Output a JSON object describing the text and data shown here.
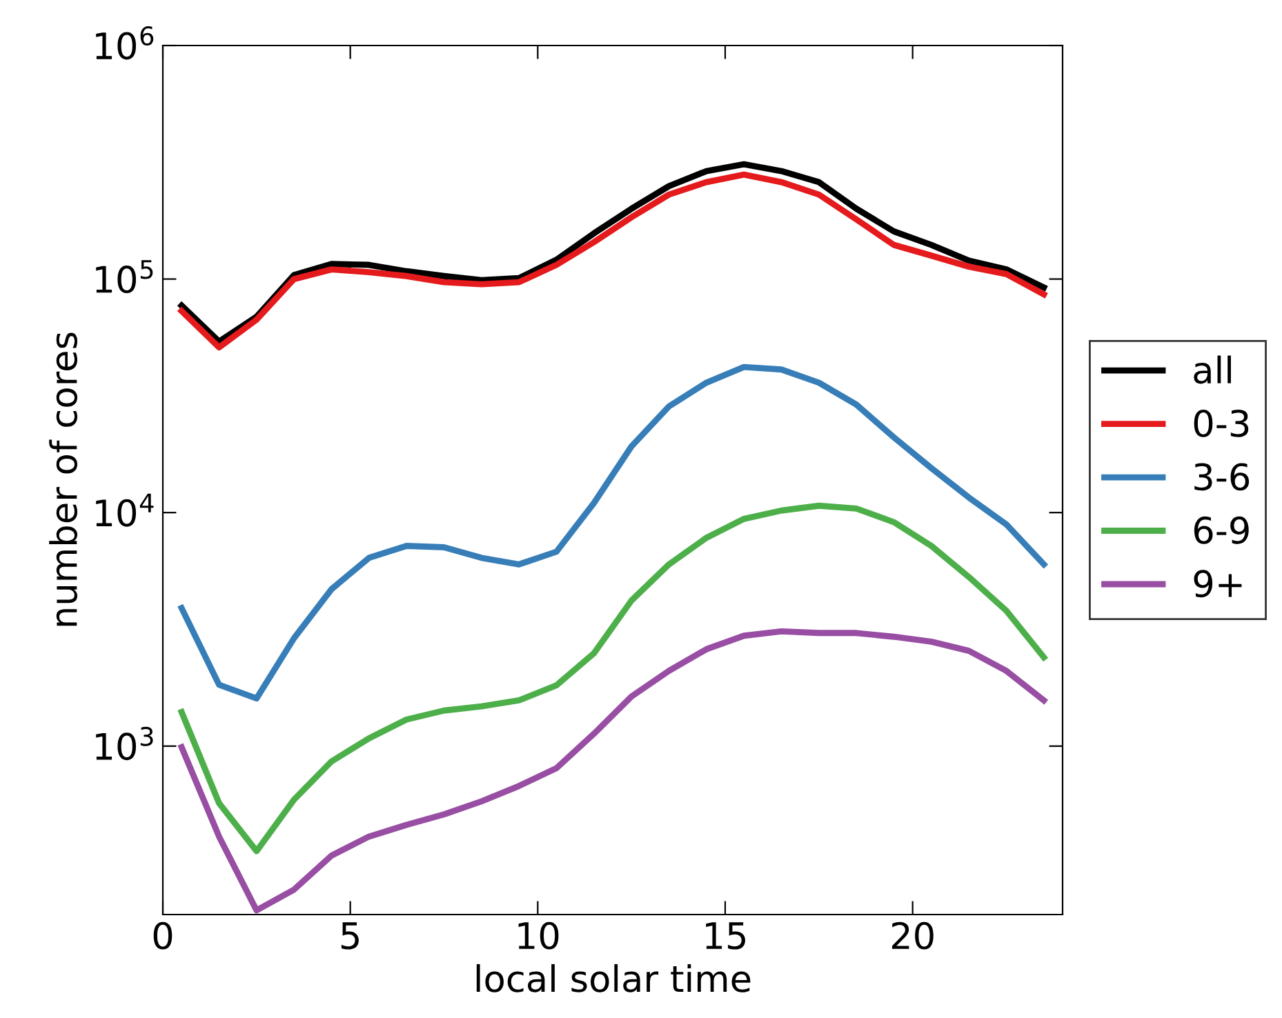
{
  "chart_data": {
    "type": "line",
    "xlabel": "local solar time",
    "ylabel": "number of cores",
    "log": "y",
    "grid": false,
    "legend": "right",
    "marker": "none",
    "line_style": "solid",
    "x": [
      0.5,
      1.5,
      2.5,
      3.5,
      4.5,
      5.5,
      6.5,
      7.5,
      8.5,
      9.5,
      10.5,
      11.5,
      12.5,
      13.5,
      14.5,
      15.5,
      16.5,
      17.5,
      18.5,
      19.5,
      20.5,
      21.5,
      22.5,
      23.5
    ],
    "xlim": [
      0,
      24
    ],
    "xticks": [
      0,
      5,
      10,
      15,
      20
    ],
    "ylim": [
      190,
      1000000
    ],
    "yticks": [
      {
        "value": 1000,
        "label": "10$^{3}$"
      },
      {
        "value": 10000,
        "label": "10$^{4}$"
      },
      {
        "value": 100000,
        "label": "10$^{5}$"
      },
      {
        "value": 1000000,
        "label": "10$^{6}$"
      }
    ],
    "series": [
      {
        "name": "all",
        "color": "#000000",
        "values": [
          77000,
          54000,
          69000,
          104000,
          116000,
          115000,
          108000,
          103000,
          99000,
          101000,
          121000,
          157000,
          200000,
          250000,
          290000,
          310000,
          290000,
          260000,
          200000,
          160000,
          140000,
          120000,
          110000,
          92000
        ]
      },
      {
        "name": "0-3",
        "color": "#e41a1c",
        "values": [
          73000,
          51000,
          67000,
          100000,
          110000,
          107000,
          103000,
          97000,
          95000,
          97000,
          115000,
          144000,
          184000,
          230000,
          260000,
          280000,
          260000,
          230000,
          180000,
          140000,
          126000,
          113000,
          105000,
          86000
        ]
      },
      {
        "name": "3-6",
        "color": "#377eb8",
        "values": [
          3900,
          1830,
          1600,
          2900,
          4700,
          6400,
          7200,
          7100,
          6400,
          6000,
          6800,
          11000,
          19200,
          28500,
          36000,
          42000,
          41000,
          36000,
          29000,
          21000,
          15500,
          11600,
          8900,
          6000
        ]
      },
      {
        "name": "6-9",
        "color": "#4daf4a",
        "values": [
          1400,
          570,
          355,
          590,
          860,
          1080,
          1300,
          1420,
          1480,
          1570,
          1820,
          2500,
          4200,
          6000,
          7800,
          9400,
          10200,
          10700,
          10400,
          9100,
          7200,
          5300,
          3800,
          2400
        ]
      },
      {
        "name": "9+",
        "color": "#984ea3",
        "values": [
          990,
          410,
          198,
          243,
          340,
          410,
          460,
          510,
          580,
          675,
          805,
          1130,
          1630,
          2100,
          2600,
          2970,
          3100,
          3050,
          3050,
          2940,
          2800,
          2560,
          2100,
          1570
        ]
      }
    ]
  }
}
